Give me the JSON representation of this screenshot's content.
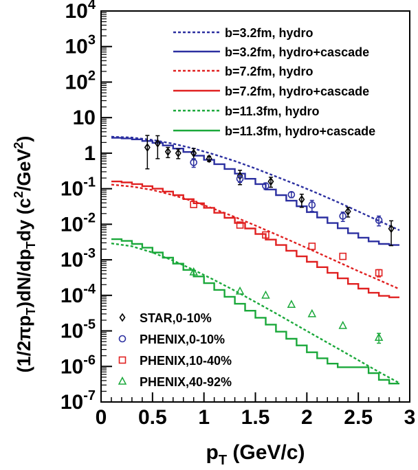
{
  "chart_data": {
    "type": "line",
    "xlabel": "p_T (GeV/c)",
    "xlabel_main": "p",
    "xlabel_sub": "T",
    "xlabel_rest": " (GeV/c)",
    "ylabel": "(1/2πp_T)dN/dp_T dy (c²/GeV²)",
    "ylabel_parts": {
      "a": "(1/2πp",
      "a_sub": "T",
      "b": ")dN/dp",
      "b_sub": "T",
      "c": "dy (c",
      "c_sup": "2",
      "d": "/GeV",
      "d_sup": "2",
      "e": ")"
    },
    "xlim": [
      0,
      3
    ],
    "ylog": true,
    "ylim": [
      1e-07,
      10000.0
    ],
    "x_ticks": [
      {
        "v": 0,
        "label": "0"
      },
      {
        "v": 0.5,
        "label": "0.5"
      },
      {
        "v": 1,
        "label": "1"
      },
      {
        "v": 1.5,
        "label": "1.5"
      },
      {
        "v": 2,
        "label": "2"
      },
      {
        "v": 2.5,
        "label": "2.5"
      },
      {
        "v": 3,
        "label": "3"
      }
    ],
    "y_ticks": [
      {
        "exp": 4,
        "base": "10",
        "sup": "4"
      },
      {
        "exp": 3,
        "base": "10",
        "sup": "3"
      },
      {
        "exp": 2,
        "base": "10",
        "sup": "2"
      },
      {
        "exp": 1,
        "base": "10",
        "sup": ""
      },
      {
        "exp": 0,
        "base": "1",
        "sup": ""
      },
      {
        "exp": -1,
        "base": "10",
        "sup": "-1"
      },
      {
        "exp": -2,
        "base": "10",
        "sup": "-2"
      },
      {
        "exp": -3,
        "base": "10",
        "sup": "-3"
      },
      {
        "exp": -4,
        "base": "10",
        "sup": "-4"
      },
      {
        "exp": -5,
        "base": "10",
        "sup": "-5"
      },
      {
        "exp": -6,
        "base": "10",
        "sup": "-6"
      },
      {
        "exp": -7,
        "base": "10",
        "sup": "-7"
      }
    ],
    "series": [
      {
        "name": "b=3.2fm, hydro",
        "color": "#2b2fa0",
        "style": "dotted",
        "x": [
          0.1,
          0.3,
          0.5,
          0.7,
          0.9,
          1.1,
          1.3,
          1.5,
          1.7,
          1.9,
          2.1,
          2.3,
          2.5,
          2.7,
          2.9
        ],
        "y": [
          2.9,
          2.75,
          2.35,
          1.85,
          1.35,
          0.92,
          0.6,
          0.37,
          0.22,
          0.13,
          0.075,
          0.042,
          0.023,
          0.0125,
          0.0068
        ]
      },
      {
        "name": "b=3.2fm, hydro+cascade",
        "color": "#2b2fa0",
        "style": "step",
        "x": [
          0.1,
          0.2,
          0.3,
          0.4,
          0.5,
          0.6,
          0.7,
          0.8,
          0.9,
          1.0,
          1.1,
          1.2,
          1.3,
          1.4,
          1.5,
          1.6,
          1.7,
          1.8,
          1.9,
          2.0,
          2.1,
          2.2,
          2.3,
          2.4,
          2.5,
          2.6,
          2.7,
          2.8
        ],
        "y": [
          2.7,
          2.6,
          2.45,
          2.2,
          1.95,
          1.65,
          1.35,
          1.08,
          0.85,
          0.65,
          0.49,
          0.36,
          0.265,
          0.19,
          0.135,
          0.095,
          0.066,
          0.046,
          0.032,
          0.022,
          0.0155,
          0.0108,
          0.0077,
          0.0056,
          0.0042,
          0.0033,
          0.0028,
          0.0026
        ]
      },
      {
        "name": "b=7.2fm, hydro",
        "color": "#e02020",
        "style": "dotted",
        "x": [
          0.1,
          0.3,
          0.5,
          0.7,
          0.9,
          1.1,
          1.3,
          1.5,
          1.7,
          1.9,
          2.1,
          2.3,
          2.5,
          2.7,
          2.9
        ],
        "y": [
          0.13,
          0.115,
          0.092,
          0.066,
          0.044,
          0.027,
          0.016,
          0.0092,
          0.0052,
          0.0029,
          0.0016,
          0.00088,
          0.00048,
          0.00027,
          0.00015
        ]
      },
      {
        "name": "b=7.2fm, hydro+cascade",
        "color": "#e02020",
        "style": "step",
        "x": [
          0.1,
          0.2,
          0.3,
          0.4,
          0.5,
          0.6,
          0.7,
          0.8,
          0.9,
          1.0,
          1.1,
          1.2,
          1.3,
          1.4,
          1.5,
          1.6,
          1.7,
          1.8,
          1.9,
          2.0,
          2.1,
          2.2,
          2.3,
          2.4,
          2.5,
          2.6,
          2.7,
          2.8
        ],
        "y": [
          0.16,
          0.15,
          0.135,
          0.118,
          0.1,
          0.083,
          0.066,
          0.051,
          0.039,
          0.029,
          0.021,
          0.0152,
          0.0108,
          0.0076,
          0.0053,
          0.0037,
          0.0026,
          0.0018,
          0.00125,
          0.00088,
          0.00062,
          0.00043,
          0.0003,
          0.00021,
          0.000155,
          0.000118,
          9.65e-05,
          8.8e-05
        ]
      },
      {
        "name": "b=11.3fm, hydro",
        "color": "#1aa83a",
        "style": "dotted",
        "x": [
          0.1,
          0.3,
          0.5,
          0.7,
          0.9,
          1.1,
          1.3,
          1.5,
          1.7,
          1.9,
          2.1,
          2.3,
          2.5,
          2.7,
          2.9
        ],
        "y": [
          0.0029,
          0.0024,
          0.0016,
          0.00095,
          0.00052,
          0.00027,
          0.000135,
          6.5e-05,
          3.1e-05,
          1.45e-05,
          6.8e-06,
          3.2e-06,
          1.5e-06,
          7e-07,
          3.4e-07
        ]
      },
      {
        "name": "b=11.3fm, hydro+cascade",
        "color": "#1aa83a",
        "style": "step",
        "x": [
          0.1,
          0.2,
          0.3,
          0.4,
          0.5,
          0.6,
          0.7,
          0.8,
          0.9,
          1.0,
          1.1,
          1.2,
          1.3,
          1.4,
          1.5,
          1.6,
          1.7,
          1.8,
          1.9,
          2.0,
          2.1,
          2.2,
          2.3,
          2.4,
          2.5,
          2.6,
          2.7,
          2.8
        ],
        "y": [
          0.0038,
          0.0034,
          0.0028,
          0.0022,
          0.0016,
          0.00115,
          0.00078,
          0.00052,
          0.00034,
          0.00022,
          0.000142,
          9.1e-05,
          5.8e-05,
          3.7e-05,
          2.35e-05,
          1.5e-05,
          9.5e-06,
          6e-06,
          3.9e-06,
          2.5e-06,
          1.7e-06,
          1.2e-06,
          9.5e-07,
          9.5e-07,
          9.5e-07,
          6.5e-07,
          4.2e-07,
          3.3e-07
        ]
      }
    ],
    "points": [
      {
        "name": "STAR,0-10%",
        "marker": "diamond",
        "color": "#000000",
        "x": [
          0.45,
          0.55,
          0.65,
          0.75,
          0.9,
          1.05,
          1.35,
          1.65,
          1.95,
          2.4,
          2.82
        ],
        "y": [
          1.45,
          1.9,
          1.1,
          1.0,
          1.0,
          0.7,
          0.23,
          0.16,
          0.05,
          0.023,
          0.0075
        ],
        "err": [
          1.7,
          1.2,
          0.35,
          0.3,
          0.35,
          0.12,
          0.1,
          0.05,
          0.02,
          0.007,
          0.005
        ]
      },
      {
        "name": "PHENIX,0-10%",
        "marker": "circle",
        "color": "#2b2fa0",
        "x": [
          0.9,
          1.35,
          1.6,
          1.85,
          2.05,
          2.35,
          2.7
        ],
        "y": [
          0.55,
          0.19,
          0.12,
          0.068,
          0.035,
          0.017,
          0.013
        ],
        "err": [
          0.15,
          0.04,
          0.025,
          0.012,
          0.012,
          0.005,
          0.004
        ]
      },
      {
        "name": "PHENIX,10-40%",
        "marker": "square",
        "color": "#e02020",
        "x": [
          0.9,
          1.35,
          1.6,
          2.05,
          2.35,
          2.7
        ],
        "y": [
          0.036,
          0.0095,
          0.005,
          0.0024,
          0.00125,
          0.00043
        ],
        "err": [
          0,
          0,
          0,
          0,
          0,
          0.0001
        ]
      },
      {
        "name": "PHENIX,40-92%",
        "marker": "triangle",
        "color": "#1aa83a",
        "x": [
          0.9,
          1.35,
          1.6,
          1.85,
          2.05,
          2.35,
          2.7
        ],
        "y": [
          0.00045,
          0.00013,
          0.0001,
          5.5e-05,
          3e-05,
          1.4e-05,
          6.5e-06
        ],
        "err": [
          0,
          0,
          0,
          0,
          0,
          0,
          2e-06
        ]
      }
    ],
    "legend_top_position": "top-right",
    "legend_bottom_position": "bottom-left",
    "grid": false
  }
}
